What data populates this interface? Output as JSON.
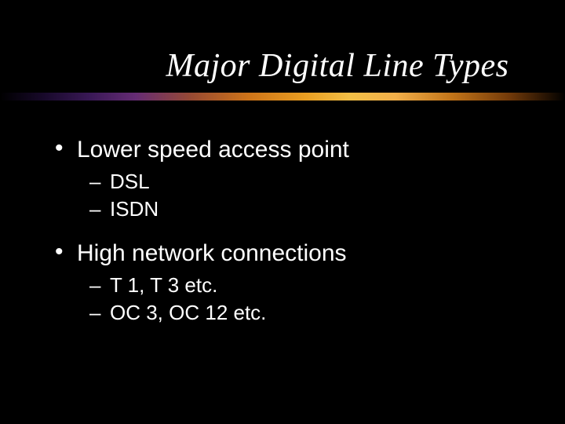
{
  "slide": {
    "title": "Major Digital Line Types",
    "title_font": "Times New Roman Italic",
    "title_fontsize": 42,
    "title_color": "#ffffff",
    "background_color": "#000000",
    "underline_gradient": [
      "#000000",
      "#3d1a5b",
      "#a04e35",
      "#f5a623",
      "#ffc94a",
      "#cc7a1a",
      "#000000"
    ],
    "body_font": "Arial",
    "body_color": "#ffffff",
    "bullets": [
      {
        "level": 1,
        "text": "Lower speed access point",
        "fontsize": 30,
        "children": [
          {
            "level": 2,
            "text": "DSL",
            "fontsize": 26
          },
          {
            "level": 2,
            "text": "ISDN",
            "fontsize": 26
          }
        ]
      },
      {
        "level": 1,
        "text": "High network connections",
        "fontsize": 30,
        "children": [
          {
            "level": 2,
            "text": "T 1, T 3 etc.",
            "fontsize": 26
          },
          {
            "level": 2,
            "text": "OC 3, OC 12 etc.",
            "fontsize": 26
          }
        ]
      }
    ]
  }
}
